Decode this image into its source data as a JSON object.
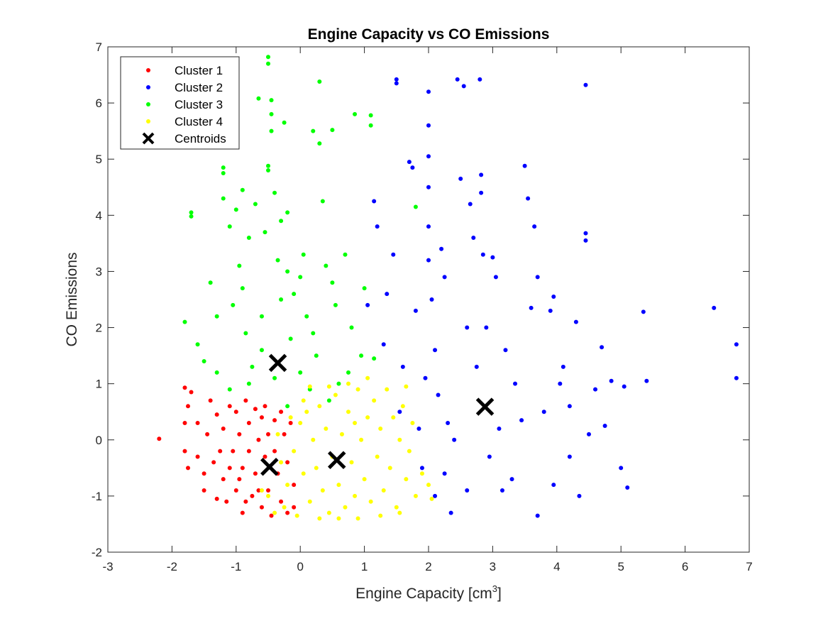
{
  "chart_data": {
    "type": "scatter",
    "title": "Engine Capacity vs CO Emissions",
    "xlabel": "Engine Capacity [cm",
    "xlabel_superscript": "3",
    "xlabel_suffix": "]",
    "ylabel": "CO Emissions",
    "xlim": [
      -3,
      7
    ],
    "ylim": [
      -2,
      7
    ],
    "x_ticks": [
      -3,
      -2,
      -1,
      0,
      1,
      2,
      3,
      4,
      5,
      6,
      7
    ],
    "y_ticks": [
      -2,
      -1,
      0,
      1,
      2,
      3,
      4,
      5,
      6,
      7
    ],
    "x_tick_labels": [
      "-3",
      "-2",
      "-1",
      "0",
      "1",
      "2",
      "3",
      "4",
      "5",
      "6",
      "7"
    ],
    "y_tick_labels": [
      "-2",
      "-1",
      "0",
      "1",
      "2",
      "3",
      "4",
      "5",
      "6",
      "7"
    ],
    "grid": false,
    "legend_position": "top-left",
    "series": [
      {
        "name": "Cluster 1",
        "color": "#ff0000",
        "marker": "dot",
        "points": [
          [
            -2.2,
            0.02
          ],
          [
            -1.8,
            0.93
          ],
          [
            -1.7,
            0.85
          ],
          [
            -1.75,
            0.6
          ],
          [
            -1.8,
            0.3
          ],
          [
            -1.8,
            -0.2
          ],
          [
            -1.75,
            -0.5
          ],
          [
            -1.6,
            0.3
          ],
          [
            -1.6,
            -0.3
          ],
          [
            -1.5,
            -0.6
          ],
          [
            -1.5,
            -0.9
          ],
          [
            -1.45,
            0.1
          ],
          [
            -1.35,
            -0.4
          ],
          [
            -1.3,
            0.45
          ],
          [
            -1.3,
            -1.05
          ],
          [
            -1.2,
            0.2
          ],
          [
            -1.2,
            -0.7
          ],
          [
            -1.15,
            -1.1
          ],
          [
            -1.1,
            0.6
          ],
          [
            -1.05,
            -0.2
          ],
          [
            -1.0,
            0.5
          ],
          [
            -1.0,
            -0.9
          ],
          [
            -0.95,
            0.1
          ],
          [
            -0.9,
            -0.5
          ],
          [
            -0.9,
            -1.3
          ],
          [
            -0.85,
            0.7
          ],
          [
            -0.8,
            0.3
          ],
          [
            -0.8,
            -0.2
          ],
          [
            -0.75,
            -1.0
          ],
          [
            -0.7,
            0.55
          ],
          [
            -0.7,
            -0.6
          ],
          [
            -0.65,
            0.0
          ],
          [
            -0.6,
            -1.2
          ],
          [
            -0.6,
            0.4
          ],
          [
            -0.55,
            -0.3
          ],
          [
            -0.5,
            0.1
          ],
          [
            -0.5,
            -0.9
          ],
          [
            -0.45,
            -1.35
          ],
          [
            -0.4,
            0.35
          ],
          [
            -0.35,
            -0.6
          ],
          [
            -0.3,
            -1.1
          ],
          [
            -0.25,
            0.1
          ],
          [
            -0.2,
            -0.4
          ],
          [
            -0.2,
            -1.3
          ],
          [
            -0.15,
            0.3
          ],
          [
            -0.1,
            -0.8
          ],
          [
            -1.25,
            -0.2
          ],
          [
            -1.1,
            -0.5
          ],
          [
            -0.95,
            -0.7
          ],
          [
            -0.85,
            -1.1
          ],
          [
            -0.65,
            -0.9
          ],
          [
            -0.55,
            0.6
          ],
          [
            -0.4,
            -0.2
          ],
          [
            -0.3,
            0.5
          ],
          [
            -0.1,
            -1.2
          ],
          [
            -1.4,
            0.7
          ]
        ]
      },
      {
        "name": "Cluster 2",
        "color": "#0000ff",
        "marker": "dot",
        "points": [
          [
            1.05,
            2.4
          ],
          [
            1.15,
            4.25
          ],
          [
            1.2,
            3.8
          ],
          [
            1.3,
            1.7
          ],
          [
            1.35,
            2.6
          ],
          [
            1.45,
            3.3
          ],
          [
            1.5,
            6.42
          ],
          [
            1.5,
            6.35
          ],
          [
            1.55,
            0.5
          ],
          [
            1.6,
            1.3
          ],
          [
            1.7,
            4.95
          ],
          [
            1.75,
            4.85
          ],
          [
            1.8,
            2.3
          ],
          [
            1.85,
            0.2
          ],
          [
            1.9,
            -0.5
          ],
          [
            1.95,
            1.1
          ],
          [
            2.0,
            6.2
          ],
          [
            2.0,
            5.6
          ],
          [
            2.0,
            5.05
          ],
          [
            2.0,
            4.5
          ],
          [
            2.0,
            3.8
          ],
          [
            2.0,
            3.2
          ],
          [
            2.05,
            2.5
          ],
          [
            2.1,
            1.6
          ],
          [
            2.15,
            0.8
          ],
          [
            2.2,
            3.4
          ],
          [
            2.25,
            2.9
          ],
          [
            2.3,
            0.3
          ],
          [
            2.35,
            -1.3
          ],
          [
            2.45,
            6.42
          ],
          [
            2.5,
            4.65
          ],
          [
            2.55,
            6.3
          ],
          [
            2.6,
            2.0
          ],
          [
            2.65,
            4.2
          ],
          [
            2.7,
            3.6
          ],
          [
            2.8,
            6.42
          ],
          [
            2.82,
            4.72
          ],
          [
            2.82,
            4.4
          ],
          [
            2.85,
            3.3
          ],
          [
            2.9,
            2.0
          ],
          [
            3.0,
            3.25
          ],
          [
            3.05,
            2.9
          ],
          [
            3.1,
            0.2
          ],
          [
            3.15,
            -0.9
          ],
          [
            3.2,
            1.6
          ],
          [
            3.35,
            1.0
          ],
          [
            3.5,
            4.88
          ],
          [
            3.55,
            4.3
          ],
          [
            3.6,
            2.35
          ],
          [
            3.65,
            3.8
          ],
          [
            3.7,
            2.9
          ],
          [
            3.8,
            0.5
          ],
          [
            3.9,
            2.3
          ],
          [
            3.95,
            2.55
          ],
          [
            4.1,
            1.3
          ],
          [
            4.2,
            0.6
          ],
          [
            4.3,
            2.1
          ],
          [
            4.45,
            6.32
          ],
          [
            4.45,
            3.68
          ],
          [
            4.45,
            3.55
          ],
          [
            4.5,
            0.1
          ],
          [
            4.6,
            0.9
          ],
          [
            4.7,
            1.65
          ],
          [
            4.75,
            0.25
          ],
          [
            4.85,
            1.05
          ],
          [
            5.0,
            -0.5
          ],
          [
            5.05,
            0.95
          ],
          [
            5.1,
            -0.85
          ],
          [
            5.35,
            2.28
          ],
          [
            5.4,
            1.05
          ],
          [
            6.45,
            2.35
          ],
          [
            6.8,
            1.7
          ],
          [
            6.8,
            1.1
          ],
          [
            2.25,
            -0.6
          ],
          [
            2.4,
            0.0
          ],
          [
            2.6,
            -0.9
          ],
          [
            2.95,
            -0.3
          ],
          [
            3.3,
            -0.7
          ],
          [
            3.7,
            -1.35
          ],
          [
            3.95,
            -0.8
          ],
          [
            4.2,
            -0.3
          ],
          [
            4.35,
            -1.0
          ],
          [
            2.1,
            -1.0
          ],
          [
            2.75,
            1.3
          ],
          [
            3.45,
            0.35
          ],
          [
            4.05,
            1.0
          ]
        ]
      },
      {
        "name": "Cluster 3",
        "color": "#00ff00",
        "marker": "dot",
        "points": [
          [
            -1.8,
            2.1
          ],
          [
            -1.7,
            4.05
          ],
          [
            -1.7,
            3.98
          ],
          [
            -1.6,
            1.7
          ],
          [
            -1.5,
            1.4
          ],
          [
            -1.4,
            2.8
          ],
          [
            -1.3,
            1.2
          ],
          [
            -1.2,
            4.85
          ],
          [
            -1.2,
            4.75
          ],
          [
            -1.2,
            4.3
          ],
          [
            -1.1,
            3.8
          ],
          [
            -1.05,
            2.4
          ],
          [
            -1.0,
            4.1
          ],
          [
            -0.95,
            3.1
          ],
          [
            -0.9,
            4.45
          ],
          [
            -0.85,
            1.9
          ],
          [
            -0.8,
            3.6
          ],
          [
            -0.75,
            1.3
          ],
          [
            -0.7,
            4.2
          ],
          [
            -0.65,
            6.08
          ],
          [
            -0.6,
            2.2
          ],
          [
            -0.55,
            3.7
          ],
          [
            -0.5,
            4.88
          ],
          [
            -0.5,
            4.8
          ],
          [
            -0.5,
            6.82
          ],
          [
            -0.5,
            6.7
          ],
          [
            -0.45,
            6.05
          ],
          [
            -0.45,
            5.8
          ],
          [
            -0.45,
            5.5
          ],
          [
            -0.4,
            4.4
          ],
          [
            -0.35,
            3.2
          ],
          [
            -0.3,
            2.5
          ],
          [
            -0.25,
            5.65
          ],
          [
            -0.2,
            4.05
          ],
          [
            -0.2,
            3.0
          ],
          [
            -0.15,
            1.8
          ],
          [
            -0.1,
            2.6
          ],
          [
            0.0,
            1.2
          ],
          [
            0.05,
            3.3
          ],
          [
            0.1,
            2.2
          ],
          [
            0.2,
            5.5
          ],
          [
            0.25,
            1.5
          ],
          [
            0.3,
            6.38
          ],
          [
            0.3,
            5.28
          ],
          [
            0.35,
            4.25
          ],
          [
            0.4,
            3.1
          ],
          [
            0.5,
            5.52
          ],
          [
            0.55,
            2.4
          ],
          [
            0.6,
            1.0
          ],
          [
            0.7,
            3.3
          ],
          [
            0.8,
            2.0
          ],
          [
            0.85,
            5.8
          ],
          [
            0.95,
            1.5
          ],
          [
            1.0,
            2.7
          ],
          [
            1.1,
            5.78
          ],
          [
            1.1,
            5.6
          ],
          [
            1.15,
            1.45
          ],
          [
            1.8,
            4.15
          ],
          [
            -1.1,
            0.9
          ],
          [
            -0.8,
            1.0
          ],
          [
            -0.4,
            1.1
          ],
          [
            -0.2,
            0.6
          ],
          [
            0.15,
            0.9
          ],
          [
            0.45,
            0.7
          ],
          [
            -0.9,
            2.7
          ],
          [
            -0.6,
            1.6
          ],
          [
            -0.3,
            3.9
          ],
          [
            0.0,
            2.9
          ],
          [
            0.2,
            1.9
          ],
          [
            0.5,
            2.8
          ],
          [
            0.75,
            1.2
          ],
          [
            -1.3,
            2.2
          ]
        ]
      },
      {
        "name": "Cluster 4",
        "color": "#ffff00",
        "marker": "dot",
        "points": [
          [
            -0.6,
            -0.9
          ],
          [
            -0.5,
            -1.0
          ],
          [
            -0.4,
            -1.3
          ],
          [
            -0.3,
            -0.4
          ],
          [
            -0.25,
            -1.2
          ],
          [
            -0.2,
            -0.8
          ],
          [
            -0.1,
            -0.2
          ],
          [
            -0.05,
            -1.35
          ],
          [
            0.0,
            0.3
          ],
          [
            0.05,
            -0.6
          ],
          [
            0.1,
            0.5
          ],
          [
            0.15,
            -1.1
          ],
          [
            0.2,
            0.0
          ],
          [
            0.25,
            -0.5
          ],
          [
            0.3,
            0.6
          ],
          [
            0.35,
            -0.9
          ],
          [
            0.4,
            0.2
          ],
          [
            0.45,
            -1.3
          ],
          [
            0.5,
            -0.3
          ],
          [
            0.55,
            0.8
          ],
          [
            0.6,
            -0.8
          ],
          [
            0.65,
            0.1
          ],
          [
            0.7,
            -1.2
          ],
          [
            0.75,
            0.5
          ],
          [
            0.8,
            -0.4
          ],
          [
            0.85,
            -1.0
          ],
          [
            0.9,
            0.9
          ],
          [
            0.95,
            0.0
          ],
          [
            1.0,
            -0.7
          ],
          [
            1.05,
            0.4
          ],
          [
            1.1,
            -1.1
          ],
          [
            1.15,
            0.7
          ],
          [
            1.2,
            -0.3
          ],
          [
            1.25,
            0.2
          ],
          [
            1.3,
            -0.9
          ],
          [
            1.35,
            0.9
          ],
          [
            1.4,
            -0.5
          ],
          [
            1.45,
            0.4
          ],
          [
            1.5,
            -1.2
          ],
          [
            1.55,
            0.0
          ],
          [
            1.6,
            0.6
          ],
          [
            1.65,
            -0.7
          ],
          [
            1.7,
            -0.2
          ],
          [
            1.75,
            0.3
          ],
          [
            1.8,
            -1.0
          ],
          [
            1.9,
            -0.6
          ],
          [
            2.0,
            -0.8
          ],
          [
            2.05,
            -1.05
          ],
          [
            0.3,
            -1.4
          ],
          [
            0.6,
            -1.4
          ],
          [
            0.9,
            -1.4
          ],
          [
            0.15,
            0.95
          ],
          [
            0.45,
            0.95
          ],
          [
            0.75,
            1.0
          ],
          [
            1.05,
            1.1
          ],
          [
            -0.35,
            0.1
          ],
          [
            -0.15,
            0.4
          ],
          [
            1.55,
            -1.3
          ],
          [
            1.25,
            -1.35
          ],
          [
            0.05,
            0.7
          ],
          [
            0.85,
            0.3
          ],
          [
            1.65,
            0.95
          ]
        ]
      },
      {
        "name": "Centroids",
        "color": "#000000",
        "marker": "x",
        "points": [
          [
            -0.35,
            1.37
          ],
          [
            -0.48,
            -0.48
          ],
          [
            0.57,
            -0.36
          ],
          [
            2.88,
            0.59
          ]
        ]
      }
    ]
  }
}
